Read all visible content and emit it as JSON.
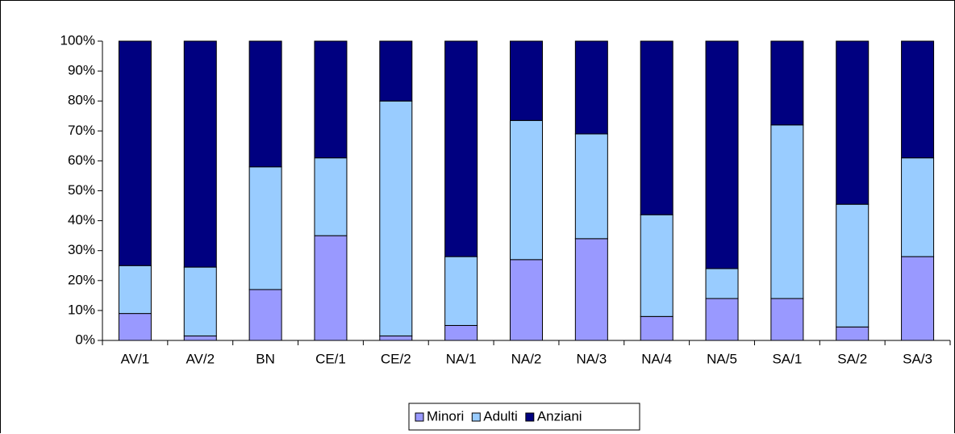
{
  "chart_data": {
    "type": "stacked_bar",
    "categories": [
      "AV/1",
      "AV/2",
      "BN",
      "CE/1",
      "CE/2",
      "NA/1",
      "NA/2",
      "NA/3",
      "NA/4",
      "NA/5",
      "SA/1",
      "SA/2",
      "SA/3"
    ],
    "series": [
      {
        "name": "Minori",
        "color": "#9999ff",
        "values": [
          9,
          1.5,
          17,
          35,
          1.5,
          5,
          27,
          34,
          8,
          14,
          14,
          4.5,
          28
        ]
      },
      {
        "name": "Adulti",
        "color": "#99ccff",
        "values": [
          16,
          23,
          41,
          26,
          78.5,
          23,
          46.5,
          35,
          34,
          10,
          58,
          41,
          33
        ]
      },
      {
        "name": "Anziani",
        "color": "#000080",
        "values": [
          75,
          75.5,
          42,
          39,
          20,
          72,
          26.5,
          31,
          58,
          76,
          28,
          54.5,
          39
        ]
      }
    ],
    "ylim": [
      0,
      100
    ],
    "yticks": [
      {
        "value": 0,
        "label": "0%"
      },
      {
        "value": 10,
        "label": "10%"
      },
      {
        "value": 20,
        "label": "20%"
      },
      {
        "value": 30,
        "label": "30%"
      },
      {
        "value": 40,
        "label": "40%"
      },
      {
        "value": 50,
        "label": "50%"
      },
      {
        "value": 60,
        "label": "60%"
      },
      {
        "value": 70,
        "label": "70%"
      },
      {
        "value": 80,
        "label": "80%"
      },
      {
        "value": 90,
        "label": "90%"
      },
      {
        "value": 100,
        "label": "100%"
      }
    ],
    "legend": "bottom"
  }
}
